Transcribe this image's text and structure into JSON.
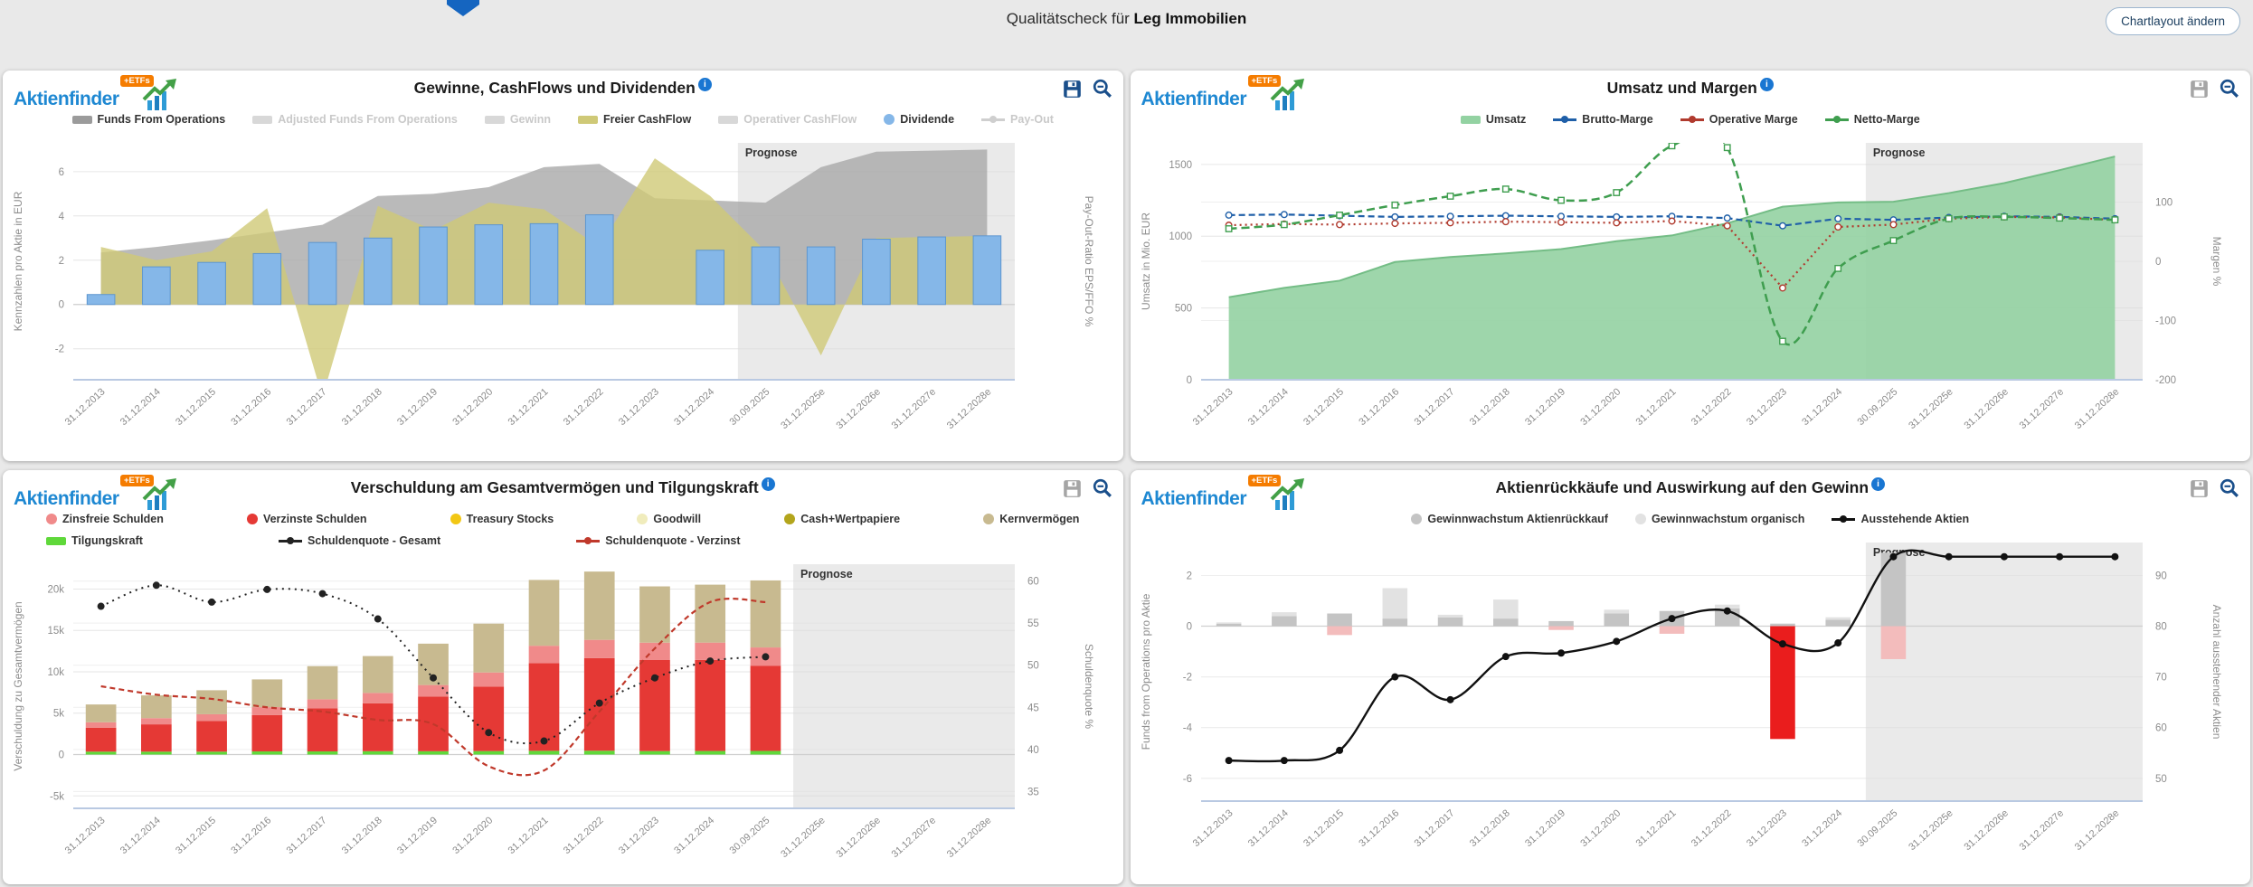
{
  "page": {
    "title_prefix": "Qualitätscheck für ",
    "title_company": "Leg Immobilien",
    "layout_button": "Chartlayout ändern"
  },
  "brand": {
    "name": "Aktienfinder",
    "badge": "+ETFs"
  },
  "colors": {
    "accent_blue": "#1a4f8b",
    "info_blue": "#1976d2",
    "prognose_gray": "#d9d9d9"
  },
  "chart_data": {
    "categories": [
      "31.12.2013",
      "31.12.2014",
      "31.12.2015",
      "31.12.2016",
      "31.12.2017",
      "31.12.2018",
      "31.12.2019",
      "31.12.2020",
      "31.12.2021",
      "31.12.2022",
      "31.12.2023",
      "31.12.2024",
      "30.09.2025",
      "31.12.2025e",
      "31.12.2026e",
      "31.12.2027e",
      "31.12.2028e"
    ],
    "chart1": {
      "id": "c1",
      "type": "mixed-area-bar",
      "title": "Gewinne, CashFlows und Dividenden",
      "prognose": {
        "label": "Prognose",
        "boundary": 12
      },
      "left": {
        "label": "Kennzahlen pro Aktie in EUR",
        "min": -3.4,
        "max": 7.3,
        "ticks": [
          {
            "v": 6,
            "t": "6"
          },
          {
            "v": 4,
            "t": "4"
          },
          {
            "v": 2,
            "t": "2"
          },
          {
            "v": 0,
            "t": "0"
          },
          {
            "v": -2,
            "t": "-2"
          }
        ]
      },
      "right": {
        "label": "Pay-Out-Ratio EPS/FFO %",
        "ticks": []
      },
      "legend": [
        [
          {
            "label": "Funds From Operations",
            "glyph": "rect",
            "color": "#9b9b9b",
            "active": true
          },
          {
            "label": "Adjusted Funds From Operations",
            "glyph": "rect",
            "color": "#d8d8d8",
            "active": false
          },
          {
            "label": "Gewinn",
            "glyph": "rect",
            "color": "#d8d8d8",
            "active": false
          },
          {
            "label": "Freier CashFlow",
            "glyph": "rect",
            "color": "#cfc977",
            "active": true
          },
          {
            "label": "Operativer CashFlow",
            "glyph": "rect",
            "color": "#d8d8d8",
            "active": false
          },
          {
            "label": "Dividende",
            "glyph": "circle",
            "color": "#85b7e8",
            "active": true
          },
          {
            "label": "Pay-Out",
            "glyph": "linedot",
            "color": "#cfcfcf",
            "active": false
          }
        ]
      ],
      "series": [
        {
          "name": "Funds From Operations",
          "type": "area",
          "axis": "left",
          "color": "#a9a9a9",
          "opacity": 0.8,
          "values": [
            2.35,
            2.6,
            2.9,
            3.25,
            3.6,
            4.9,
            5.0,
            5.3,
            6.2,
            6.35,
            4.8,
            4.7,
            4.6,
            6.2,
            6.9,
            6.95,
            7.0
          ]
        },
        {
          "name": "Freier CashFlow",
          "type": "area",
          "axis": "left",
          "color": "#cfc977",
          "opacity": 0.8,
          "values": [
            2.6,
            2.0,
            2.4,
            4.35,
            -4.2,
            4.45,
            3.35,
            4.6,
            4.3,
            2.6,
            6.6,
            4.9,
            2.4,
            -2.3,
            3.0,
            3.05,
            3.1
          ]
        },
        {
          "name": "Dividende",
          "type": "bar",
          "axis": "left",
          "color": "#85b7e8",
          "stroke": "#5d96cf",
          "barWidth": 0.5,
          "values": [
            0.45,
            1.7,
            1.9,
            2.3,
            2.8,
            3.0,
            3.5,
            3.6,
            3.65,
            4.05,
            null,
            2.45,
            2.6,
            2.6,
            2.95,
            3.05,
            3.1
          ]
        }
      ]
    },
    "chart2": {
      "id": "c2",
      "type": "mixed-area-line",
      "title": "Umsatz und Margen",
      "prognose": {
        "label": "Prognose",
        "boundary": 12
      },
      "left": {
        "label": "Umsatz in Mio. EUR",
        "min": 0,
        "max": 1650,
        "ticks": [
          {
            "v": 1500,
            "t": "1500"
          },
          {
            "v": 1000,
            "t": "1000"
          },
          {
            "v": 500,
            "t": "500"
          },
          {
            "v": 0,
            "t": "0"
          }
        ]
      },
      "right": {
        "label": "Margen %",
        "min": -200,
        "max": 200,
        "ticks": [
          {
            "v": 100,
            "t": "100"
          },
          {
            "v": 0,
            "t": "0"
          },
          {
            "v": -100,
            "t": "-100"
          },
          {
            "v": -200,
            "t": "-200"
          }
        ]
      },
      "legend": [
        [
          {
            "label": "Umsatz",
            "glyph": "rect",
            "color": "#93d2a2",
            "active": true
          },
          {
            "label": "Brutto-Marge",
            "glyph": "linedot",
            "color": "#1f5fa8",
            "active": true
          },
          {
            "label": "Operative Marge",
            "glyph": "linedot",
            "color": "#b03a2e",
            "active": true
          },
          {
            "label": "Netto-Marge",
            "glyph": "linedot",
            "color": "#3f9e4f",
            "active": true
          }
        ]
      ],
      "series": [
        {
          "name": "Umsatz",
          "type": "area",
          "axis": "left",
          "color": "#93d2a2",
          "opacity": 0.9,
          "stroke": "#74bd86",
          "values": [
            575,
            640,
            690,
            820,
            855,
            880,
            910,
            965,
            1005,
            1090,
            1205,
            1235,
            1240,
            1300,
            1370,
            1460,
            1555
          ]
        },
        {
          "name": "Brutto-Marge",
          "type": "line",
          "axis": "right",
          "color": "#1f5fa8",
          "dash": "7 4",
          "marker": "circle",
          "width": 2.2,
          "values": [
            78,
            79,
            77,
            75,
            76,
            77,
            76,
            75,
            76,
            73,
            60,
            72,
            70,
            74,
            76,
            75,
            72
          ]
        },
        {
          "name": "Operative Marge",
          "type": "line",
          "axis": "right",
          "color": "#b03a2e",
          "dash": "2 4",
          "marker": "circle",
          "width": 2.2,
          "values": [
            61,
            63,
            62,
            64,
            65,
            67,
            66,
            65,
            68,
            60,
            -45,
            58,
            62,
            72,
            75,
            74,
            70
          ]
        },
        {
          "name": "Netto-Marge",
          "type": "line",
          "axis": "right",
          "color": "#3f9e4f",
          "dash": "9 5",
          "marker": "square",
          "width": 2.5,
          "smooth": true,
          "values": [
            55,
            62,
            78,
            95,
            110,
            122,
            103,
            116,
            195,
            192,
            -135,
            -12,
            35,
            72,
            75,
            73,
            70
          ]
        }
      ]
    },
    "chart3": {
      "id": "c3",
      "type": "stacked-bar-line",
      "title": "Verschuldung am Gesamtvermögen und Tilgungskraft",
      "prognose": {
        "label": "Prognose",
        "boundary": 13
      },
      "left": {
        "label": "Verschuldung zu Gesamtvermögen",
        "min": -6500,
        "max": 23000,
        "ticks": [
          {
            "v": 20000,
            "t": "20k"
          },
          {
            "v": 15000,
            "t": "15k"
          },
          {
            "v": 10000,
            "t": "10k"
          },
          {
            "v": 5000,
            "t": "5k"
          },
          {
            "v": 0,
            "t": "0"
          },
          {
            "v": -5000,
            "t": "-5k"
          }
        ]
      },
      "right": {
        "label": "Schuldenquote %",
        "min": 33,
        "max": 62,
        "ticks": [
          {
            "v": 60,
            "t": "60"
          },
          {
            "v": 55,
            "t": "55"
          },
          {
            "v": 50,
            "t": "50"
          },
          {
            "v": 45,
            "t": "45"
          },
          {
            "v": 40,
            "t": "40"
          },
          {
            "v": 35,
            "t": "35"
          }
        ]
      },
      "legend": [
        [
          {
            "label": "Zinsfreie Schulden",
            "glyph": "circle",
            "color": "#f08a8a",
            "active": true
          },
          {
            "label": "Verzinste Schulden",
            "glyph": "circle",
            "color": "#e53935",
            "active": true
          },
          {
            "label": "Treasury Stocks",
            "glyph": "circle",
            "color": "#f2c714",
            "active": true
          },
          {
            "label": "Goodwill",
            "glyph": "circle",
            "color": "#f0ecbc",
            "active": true
          },
          {
            "label": "Cash+Wertpapiere",
            "glyph": "circle",
            "color": "#b3a51c",
            "active": true
          },
          {
            "label": "Kernvermögen",
            "glyph": "circle",
            "color": "#c8ba90",
            "active": true
          }
        ],
        [
          {
            "label": "Tilgungskraft",
            "glyph": "rect",
            "color": "#5fd83a",
            "active": true
          },
          {
            "label": "Schuldenquote - Gesamt",
            "glyph": "linedot",
            "color": "#222222",
            "active": true
          },
          {
            "label": "Schuldenquote - Verzinst",
            "glyph": "linedot",
            "color": "#c0392b",
            "active": true
          }
        ]
      ],
      "series": [
        {
          "name": "Verschuldung",
          "type": "stack",
          "barWidth": 0.55,
          "segments": [
            {
              "name": "Tilgungskraft",
              "color": "#5fd83a",
              "values": [
                350,
                350,
                350,
                380,
                380,
                400,
                400,
                420,
                450,
                460,
                420,
                430,
                440,
                null,
                null,
                null,
                null
              ]
            },
            {
              "name": "Verzinste Schulden",
              "color": "#e53935",
              "values": [
                2900,
                3300,
                3700,
                4400,
                5200,
                5800,
                6600,
                7800,
                10600,
                11200,
                11000,
                11000,
                10300,
                null,
                null,
                null,
                null
              ]
            },
            {
              "name": "Zinsfreie Schulden",
              "color": "#f08a8a",
              "values": [
                650,
                750,
                820,
                950,
                1100,
                1250,
                1400,
                1700,
                2100,
                2200,
                2100,
                2100,
                2200,
                null,
                null,
                null,
                null
              ]
            },
            {
              "name": "Kernvermögen",
              "color": "#c8ba90",
              "values": [
                2150,
                2750,
                2900,
                3350,
                4000,
                4450,
                5000,
                5900,
                7950,
                8250,
                6800,
                7000,
                8100,
                null,
                null,
                null,
                null
              ]
            }
          ]
        },
        {
          "name": "Schuldenquote - Verzinst",
          "type": "line",
          "axis": "right",
          "color": "#c0392b",
          "dash": "6 4",
          "width": 2.2,
          "smooth": true,
          "values": [
            47.5,
            46.5,
            46,
            45,
            44.5,
            43.5,
            43,
            38,
            37.5,
            44.5,
            52,
            57.5,
            57.5,
            null,
            null,
            null,
            null
          ]
        },
        {
          "name": "Schuldenquote - Gesamt",
          "type": "line",
          "axis": "right",
          "color": "#222222",
          "dash": "2 5",
          "marker": "circle",
          "markerFill": "#222222",
          "width": 2,
          "smooth": true,
          "values": [
            57,
            59.5,
            57.5,
            59,
            58.5,
            55.5,
            48.5,
            42,
            41,
            45.5,
            48.5,
            50.5,
            51,
            null,
            null,
            null,
            null
          ]
        }
      ]
    },
    "chart4": {
      "id": "c4",
      "type": "stacked-bar-line",
      "title": "Aktienrückkäufe und Auswirkung auf den Gewinn",
      "prognose": {
        "label": "Prognose",
        "boundary": 12
      },
      "left": {
        "label": "Funds from Operations pro Aktie",
        "min": -6.9,
        "max": 3.3,
        "ticks": [
          {
            "v": 2,
            "t": "2"
          },
          {
            "v": 0,
            "t": "0"
          },
          {
            "v": -2,
            "t": "-2"
          },
          {
            "v": -4,
            "t": "-4"
          },
          {
            "v": -6,
            "t": "-6"
          }
        ]
      },
      "right": {
        "label": "Anzahl ausstehender Aktien",
        "min": 45.5,
        "max": 96.5,
        "ticks": [
          {
            "v": 90,
            "t": "90"
          },
          {
            "v": 80,
            "t": "80"
          },
          {
            "v": 70,
            "t": "70"
          },
          {
            "v": 60,
            "t": "60"
          },
          {
            "v": 50,
            "t": "50"
          }
        ]
      },
      "legend": [
        [
          {
            "label": "Gewinnwachstum Aktienrückkauf",
            "glyph": "circle",
            "color": "#c4c4c4",
            "active": true
          },
          {
            "label": "Gewinnwachstum organisch",
            "glyph": "circle",
            "color": "#e2e2e2",
            "active": true
          },
          {
            "label": "Ausstehende Aktien",
            "glyph": "linedot",
            "color": "#111111",
            "active": true
          }
        ]
      ],
      "series": [
        {
          "name": "Gewinnwachstum",
          "type": "stack",
          "barWidth": 0.45,
          "segments": [
            {
              "name": "Gewinnwachstum Aktienrückkauf",
              "color": "#c4c4c4",
              "values": [
                0.1,
                0.4,
                0.5,
                0.3,
                0.35,
                0.3,
                0.2,
                0.5,
                0.6,
                0.7,
                0.1,
                0.25,
                2.9,
                null,
                null,
                null,
                null
              ]
            },
            {
              "name": "Gewinnwachstum organisch",
              "color": "#e2e2e2",
              "negColor": "#f3bcbc",
              "pointColors": {
                "10": "#ea1d1d"
              },
              "values": [
                0.05,
                0.15,
                -0.35,
                1.2,
                0.1,
                0.75,
                -0.15,
                0.15,
                -0.3,
                0.15,
                -4.45,
                0.1,
                -1.3,
                null,
                null,
                null,
                null
              ]
            }
          ]
        },
        {
          "name": "Ausstehende Aktien",
          "type": "line",
          "axis": "right",
          "color": "#111111",
          "marker": "circle",
          "markerFill": "#111111",
          "width": 2.4,
          "smooth": true,
          "values": [
            53.5,
            53.5,
            55.5,
            70,
            65.5,
            74,
            74.7,
            77,
            81.5,
            83,
            76.5,
            76.7,
            93.7,
            93.7,
            93.7,
            93.7,
            93.7
          ]
        }
      ]
    }
  }
}
